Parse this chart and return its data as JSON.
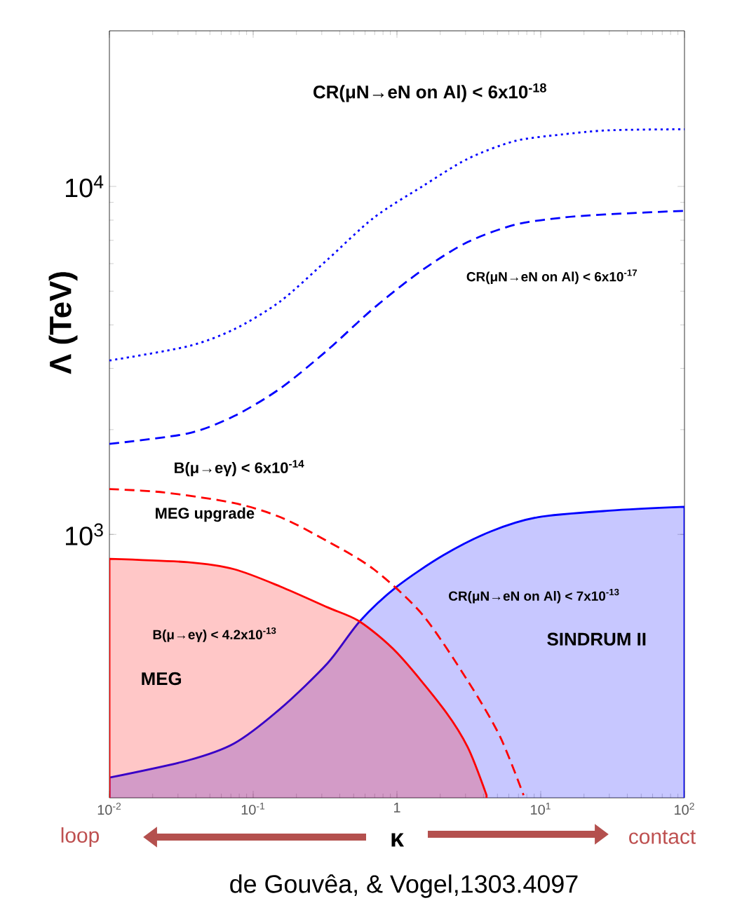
{
  "chart_data": {
    "type": "line",
    "xlabel": "κ",
    "ylabel": "Λ (TeV)",
    "log": "xy",
    "legend": false,
    "marker": "none",
    "grid": false,
    "xlim": [
      0.01,
      100
    ],
    "ylim": [
      175,
      28000
    ],
    "xticks": [
      {
        "value": 0.01,
        "label": "10$^{-2}$"
      },
      {
        "value": 0.1,
        "label": "10$^{-1}$"
      },
      1,
      {
        "value": 10,
        "label": "10$^{1}$"
      },
      {
        "value": 100,
        "label": "10$^{2}$"
      }
    ],
    "yticks": [
      {
        "value": 1000,
        "label": "10$^{3}$"
      },
      {
        "value": 10000,
        "label": "10$^{4}$"
      }
    ],
    "series": [
      {
        "type": "area",
        "name": "CR(μN→eN on Al) < 7x10$^{-13}$",
        "color": "#0000ff",
        "line_style": "solid",
        "x": [
          0.01,
          0.035,
          0.074,
          0.155,
          0.33,
          0.55,
          1.0,
          2.1,
          4.5,
          9.5,
          30,
          100
        ],
        "values": [
          200,
          224,
          251,
          316,
          427,
          562,
          708,
          871,
          1020,
          1120,
          1170,
          1200
        ]
      },
      {
        "type": "area",
        "name": "B(μ→eγ) < 4.2x10$^{-13}$",
        "color": "#ff0000",
        "line_style": "solid",
        "x": [
          0.01,
          0.035,
          0.074,
          0.155,
          0.33,
          0.55,
          1.0,
          2.1,
          3.1,
          4.2
        ],
        "values": [
          851,
          832,
          794,
          708,
          617,
          562,
          457,
          316,
          245,
          178
        ]
      },
      {
        "name": "B(μ→eγ) < 6x10$^{-14}$",
        "color": "#ff0000",
        "line_style": "dashed",
        "x": [
          0.01,
          0.024,
          0.074,
          0.155,
          0.33,
          0.69,
          1.5,
          3.1,
          5.2,
          7.6
        ],
        "values": [
          1350,
          1320,
          1230,
          1120,
          955,
          794,
          589,
          380,
          263,
          178
        ]
      },
      {
        "name": "CR(μN→eN on Al) < 6x10$^{-17}$",
        "color": "#0000ff",
        "line_style": "dashed",
        "x": [
          0.01,
          0.035,
          0.074,
          0.155,
          0.33,
          0.69,
          1.5,
          3.1,
          6.6,
          14,
          30,
          100
        ],
        "values": [
          1820,
          1950,
          2190,
          2630,
          3390,
          4470,
          5750,
          6920,
          7760,
          8130,
          8320,
          8510
        ]
      },
      {
        "name": "CR(μN→eN on Al) < 6x10$^{-18}$",
        "color": "#0000ff",
        "line_style": "dotted",
        "x": [
          0.01,
          0.035,
          0.074,
          0.155,
          0.33,
          0.69,
          1.5,
          3.1,
          6.6,
          14,
          30,
          100
        ],
        "values": [
          3160,
          3470,
          3890,
          4680,
          6170,
          8130,
          10000,
          12000,
          13500,
          14100,
          14500,
          14600
        ]
      }
    ],
    "annotations": [
      "MEG upgrade",
      "SINDRUM II",
      "MEG",
      "loop",
      "contact",
      "de Gouvêa, & Vogel,1303.4097"
    ]
  }
}
